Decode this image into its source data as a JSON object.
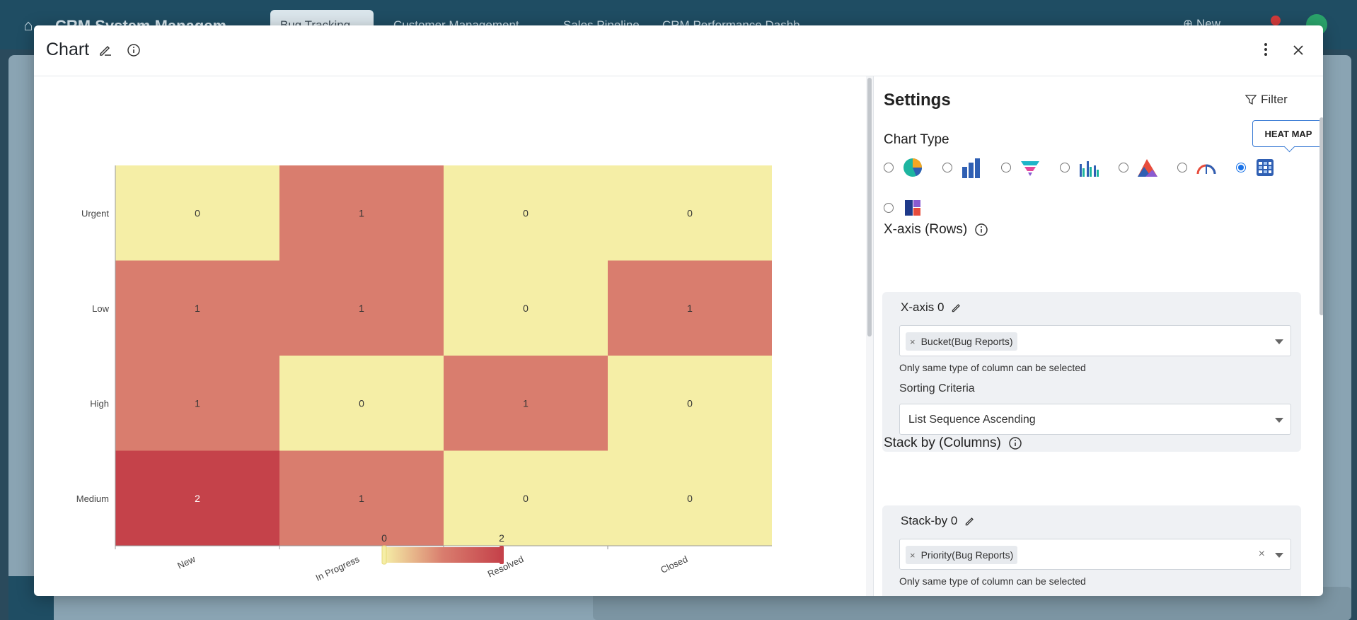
{
  "background": {
    "app_title": "CRM System Managem",
    "tabs": [
      {
        "label": "Bug Tracking ⌄",
        "active": true
      },
      {
        "label": "Customer Management ⌄",
        "active": false
      },
      {
        "label": "Sales Pipeline",
        "active": false
      },
      {
        "label": "CRM Performance Dashb",
        "active": false
      }
    ],
    "new_label": "⊕ New"
  },
  "modal": {
    "title": "Chart",
    "icons": {
      "edit": "pencil-icon",
      "info": "info-icon",
      "more": "kebab-icon",
      "close": "close-icon"
    }
  },
  "chart_data": {
    "type": "heatmap",
    "rows": [
      "Urgent",
      "Low",
      "High",
      "Medium"
    ],
    "columns": [
      "New",
      "In Progress",
      "Resolved",
      "Closed"
    ],
    "values": [
      [
        0,
        1,
        0,
        0
      ],
      [
        1,
        1,
        0,
        1
      ],
      [
        1,
        0,
        1,
        0
      ],
      [
        2,
        1,
        0,
        0
      ]
    ],
    "color_scale": {
      "min": 0,
      "max": 2,
      "low_color": "#f5eea6",
      "mid_color": "#d97d6e",
      "high_color": "#c5424a"
    },
    "legend_labels": [
      "0",
      "2"
    ]
  },
  "settings": {
    "title": "Settings",
    "filter_label": "Filter",
    "chart_type_label": "Chart Type",
    "tooltip": "HEAT MAP",
    "chart_types": [
      {
        "name": "pie-chart-icon",
        "checked": false
      },
      {
        "name": "bar-chart-icon",
        "checked": false
      },
      {
        "name": "funnel-chart-icon",
        "checked": false
      },
      {
        "name": "grouped-bar-chart-icon",
        "checked": false
      },
      {
        "name": "area-chart-icon",
        "checked": false
      },
      {
        "name": "gauge-chart-icon",
        "checked": false
      },
      {
        "name": "heatmap-chart-icon",
        "checked": true
      },
      {
        "name": "treemap-chart-icon",
        "checked": false
      }
    ],
    "x_axis": {
      "section_label": "X-axis (Rows)",
      "card_title": "X-axis 0",
      "chip": "Bucket(Bug Reports)",
      "hint": "Only same type of column can be selected",
      "sorting_label": "Sorting Criteria",
      "sorting_value": "List Sequence Ascending"
    },
    "stack_by": {
      "section_label": "Stack by (Columns)",
      "card_title": "Stack-by 0",
      "chip": "Priority(Bug Reports)",
      "hint": "Only same type of column can be selected"
    }
  }
}
